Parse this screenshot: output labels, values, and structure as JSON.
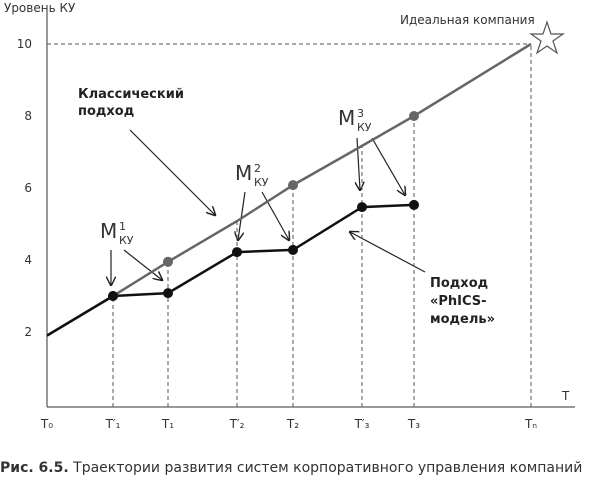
{
  "chart_data": {
    "type": "line",
    "y_label": "Уровень КУ",
    "x_label": "T",
    "categories": [
      "T₀",
      "T′₁",
      "T₁",
      "T′₂",
      "T₂",
      "T′₃",
      "T₃",
      "Tₙ"
    ],
    "series": [
      {
        "name": "Классический подход",
        "color": "#666666",
        "values": [
          1.9,
          3.0,
          3.95,
          5.08,
          6.08,
          7.17,
          8.0,
          10
        ]
      },
      {
        "name": "Подход «PhICS-модель»",
        "color": "#111111",
        "values": [
          1.9,
          3.0,
          3.08,
          4.22,
          4.28,
          5.47,
          5.53,
          null
        ]
      }
    ],
    "ylim": [
      0,
      11
    ],
    "yticks": [
      2,
      4,
      6,
      8,
      10
    ],
    "annotations": {
      "ideal": "Идеальная компания",
      "classic": [
        "Классический",
        "подход"
      ],
      "phics": [
        "Подход",
        "«PhICS-",
        "модель»"
      ],
      "m1": {
        "main": "M",
        "sub": "КУ",
        "sup": "1"
      },
      "m2": {
        "main": "M",
        "sub": "КУ",
        "sup": "2"
      },
      "m3": {
        "main": "M",
        "sub": "КУ",
        "sup": "3"
      }
    },
    "caption": {
      "label": "Рис. 6.5.",
      "text": "Траектории развития систем корпоративного управления компаний"
    }
  }
}
